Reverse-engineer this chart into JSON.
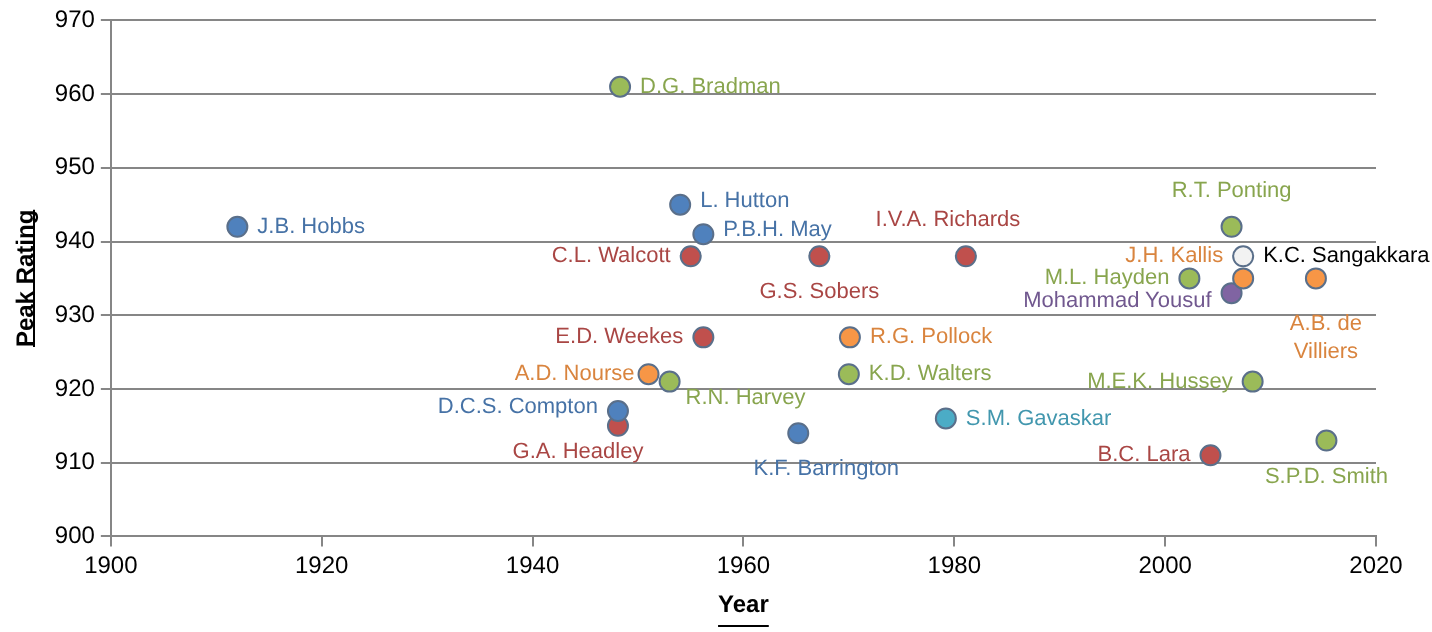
{
  "chart_data": {
    "type": "scatter",
    "xlabel": "Year",
    "ylabel": "Peak Rating",
    "xlim": [
      1900,
      2020
    ],
    "xticks": [
      1900,
      1920,
      1940,
      1960,
      1980,
      2000,
      2020
    ],
    "ylim": [
      900,
      970
    ],
    "yticks": [
      900,
      910,
      920,
      930,
      940,
      950,
      960,
      970
    ],
    "grid": "y",
    "legend": false,
    "marker": "circle",
    "series": [
      {
        "name": "J.B. Hobbs",
        "color": "#4f81bd",
        "x": [
          1912
        ],
        "values": [
          942
        ]
      },
      {
        "name": "D.G. Bradman",
        "color": "#9bbb59",
        "x": [
          1948.3
        ],
        "values": [
          961
        ]
      },
      {
        "name": "L. Hutton",
        "color": "#4f81bd",
        "x": [
          1954
        ],
        "values": [
          945
        ]
      },
      {
        "name": "P.B.H. May",
        "color": "#4f81bd",
        "x": [
          1956.2
        ],
        "values": [
          941
        ]
      },
      {
        "name": "C.L. Walcott",
        "color": "#c0504d",
        "x": [
          1955
        ],
        "values": [
          938
        ]
      },
      {
        "name": "E.D. Weekes",
        "color": "#c0504d",
        "x": [
          1956.2
        ],
        "values": [
          927
        ]
      },
      {
        "name": "A.D. Nourse",
        "color": "#f79646",
        "x": [
          1951
        ],
        "values": [
          922
        ]
      },
      {
        "name": "R.N. Harvey",
        "color": "#9bbb59",
        "x": [
          1953
        ],
        "values": [
          921
        ]
      },
      {
        "name": "D.C.S. Compton",
        "color": "#4f81bd",
        "x": [
          1948.1
        ],
        "values": [
          917
        ]
      },
      {
        "name": "G.A. Headley",
        "color": "#c0504d",
        "x": [
          1948.1
        ],
        "values": [
          915
        ]
      },
      {
        "name": "K.F. Barrington",
        "color": "#4f81bd",
        "x": [
          1965.2
        ],
        "values": [
          914
        ]
      },
      {
        "name": "G.S. Sobers",
        "color": "#c0504d",
        "x": [
          1967.2
        ],
        "values": [
          938
        ]
      },
      {
        "name": "I.V.A. Richards",
        "color": "#c0504d",
        "x": [
          1981.1
        ],
        "values": [
          938
        ]
      },
      {
        "name": "R.G. Pollock",
        "color": "#f79646",
        "x": [
          1970.1
        ],
        "values": [
          927
        ]
      },
      {
        "name": "K.D. Walters",
        "color": "#9bbb59",
        "x": [
          1970
        ],
        "values": [
          922
        ]
      },
      {
        "name": "S.M. Gavaskar",
        "color": "#4bacc6",
        "x": [
          1979.2
        ],
        "values": [
          916
        ]
      },
      {
        "name": "R.T. Ponting",
        "color": "#9bbb59",
        "x": [
          2006.3
        ],
        "values": [
          942
        ]
      },
      {
        "name": "J.H. Kallis",
        "color": "#f79646",
        "x": [
          2007.4
        ],
        "values": [
          935
        ]
      },
      {
        "name": "K.C. Sangakkara",
        "color": "#f2f2f2",
        "x": [
          2007.4
        ],
        "values": [
          938
        ]
      },
      {
        "name": "M.L. Hayden",
        "color": "#9bbb59",
        "x": [
          2002.3
        ],
        "values": [
          935
        ]
      },
      {
        "name": "Mohammad Yousuf",
        "color": "#8064a2",
        "x": [
          2006.3
        ],
        "values": [
          933
        ]
      },
      {
        "name": "A.B. de Villiers",
        "color": "#f79646",
        "x": [
          2014.3
        ],
        "values": [
          935
        ]
      },
      {
        "name": "M.E.K. Hussey",
        "color": "#9bbb59",
        "x": [
          2008.3
        ],
        "values": [
          921
        ]
      },
      {
        "name": "B.C. Lara",
        "color": "#c0504d",
        "x": [
          2004.3
        ],
        "values": [
          911
        ]
      },
      {
        "name": "S.P.D. Smith",
        "color": "#9bbb59",
        "x": [
          2015.3
        ],
        "values": [
          913
        ]
      }
    ]
  }
}
